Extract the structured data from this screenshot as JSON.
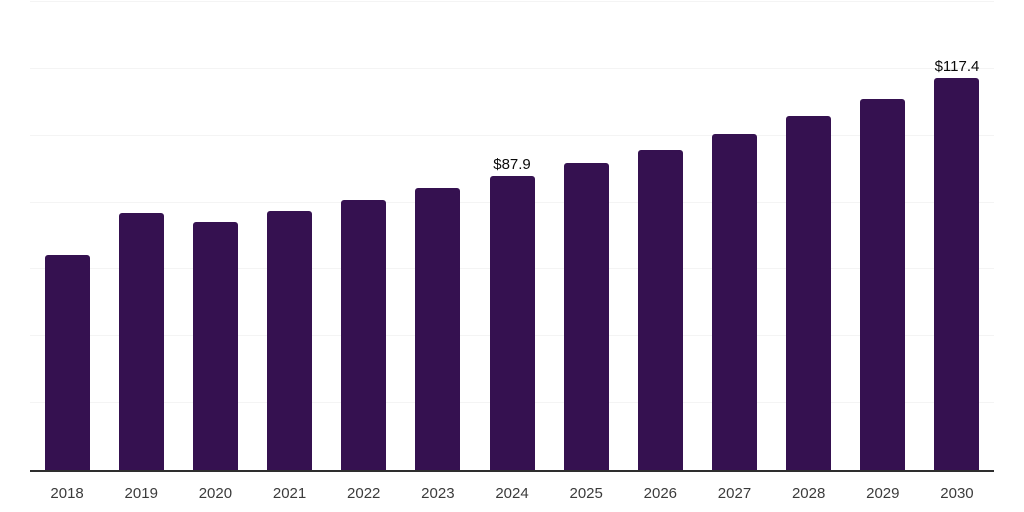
{
  "chart_data": {
    "type": "bar",
    "title": "",
    "xlabel": "",
    "ylabel": "",
    "categories": [
      "2018",
      "2019",
      "2020",
      "2021",
      "2022",
      "2023",
      "2024",
      "2025",
      "2026",
      "2027",
      "2028",
      "2029",
      "2030"
    ],
    "values": [
      64.3,
      76.9,
      74.2,
      77.5,
      80.7,
      84.3,
      87.9,
      91.8,
      95.6,
      100.4,
      105.8,
      111.1,
      117.4
    ],
    "ylim": [
      0,
      140
    ],
    "grid_step": 20,
    "grid": true,
    "legend": false,
    "annotations": [
      {
        "category": "2024",
        "text": "$87.9"
      },
      {
        "category": "2030",
        "text": "$117.4"
      }
    ]
  },
  "colors": {
    "bar": "#351150",
    "axis_line": "#2e2e2e",
    "gridline": "#f4f4f4",
    "tick_label": "#3b3b3b",
    "data_label": "#0a0a0a",
    "background": "#ffffff"
  }
}
